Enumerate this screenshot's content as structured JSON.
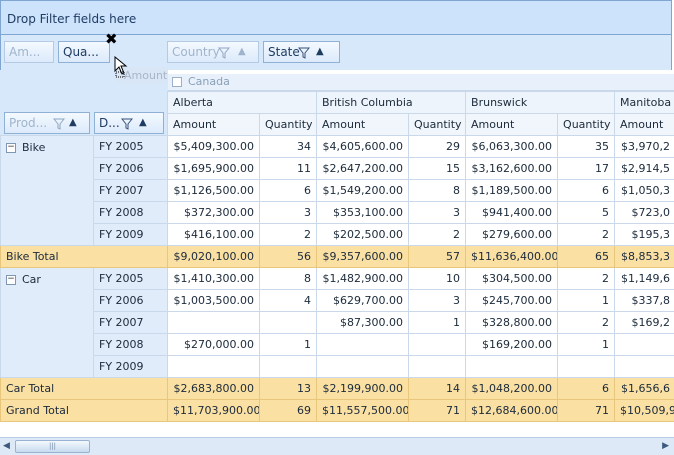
{
  "filter_area": {
    "label": "Drop Filter fields here"
  },
  "field_buttons": {
    "am": "Am...",
    "qua": "Qua...",
    "country": "Country",
    "state": "State",
    "product": "Prod...",
    "date": "D..."
  },
  "drag": {
    "ghost_label": "Amount"
  },
  "country_header": "Canada",
  "regions": [
    "Alberta",
    "British Columbia",
    "Brunswick",
    "Manitoba"
  ],
  "measures": {
    "amount": "Amount",
    "quantity": "Quantity"
  },
  "rows": [
    {
      "product": "Bike",
      "year": "FY 2005",
      "v": [
        "$5,409,300.00",
        "34",
        "$4,605,600.00",
        "29",
        "$6,063,300.00",
        "35",
        "$3,970,2"
      ]
    },
    {
      "product": "",
      "year": "FY 2006",
      "v": [
        "$1,695,900.00",
        "11",
        "$2,647,200.00",
        "15",
        "$3,162,600.00",
        "17",
        "$2,914,5"
      ]
    },
    {
      "product": "",
      "year": "FY 2007",
      "v": [
        "$1,126,500.00",
        "6",
        "$1,549,200.00",
        "8",
        "$1,189,500.00",
        "6",
        "$1,050,3"
      ]
    },
    {
      "product": "",
      "year": "FY 2008",
      "v": [
        "$372,300.00",
        "3",
        "$353,100.00",
        "3",
        "$941,400.00",
        "5",
        "$723,0"
      ]
    },
    {
      "product": "",
      "year": "FY 2009",
      "v": [
        "$416,100.00",
        "2",
        "$202,500.00",
        "2",
        "$279,600.00",
        "2",
        "$195,3"
      ]
    },
    {
      "total": "Bike Total",
      "v": [
        "$9,020,100.00",
        "56",
        "$9,357,600.00",
        "57",
        "$11,636,400.00",
        "65",
        "$8,853,3"
      ]
    },
    {
      "product": "Car",
      "year": "FY 2005",
      "v": [
        "$1,410,300.00",
        "8",
        "$1,482,900.00",
        "10",
        "$304,500.00",
        "2",
        "$1,149,6"
      ]
    },
    {
      "product": "",
      "year": "FY 2006",
      "v": [
        "$1,003,500.00",
        "4",
        "$629,700.00",
        "3",
        "$245,700.00",
        "1",
        "$337,8"
      ]
    },
    {
      "product": "",
      "year": "FY 2007",
      "v": [
        "",
        "",
        "$87,300.00",
        "1",
        "$328,800.00",
        "2",
        "$169,2"
      ]
    },
    {
      "product": "",
      "year": "FY 2008",
      "v": [
        "$270,000.00",
        "1",
        "",
        "",
        "$169,200.00",
        "1",
        ""
      ]
    },
    {
      "product": "",
      "year": "FY 2009",
      "v": [
        "",
        "",
        "",
        "",
        "",
        "",
        ""
      ]
    },
    {
      "total": "Car Total",
      "v": [
        "$2,683,800.00",
        "13",
        "$2,199,900.00",
        "14",
        "$1,048,200.00",
        "6",
        "$1,656,6"
      ]
    },
    {
      "total": "Grand Total",
      "v": [
        "$11,703,900.00",
        "69",
        "$11,557,500.00",
        "71",
        "$12,684,600.00",
        "71",
        "$10,509,9"
      ]
    }
  ]
}
